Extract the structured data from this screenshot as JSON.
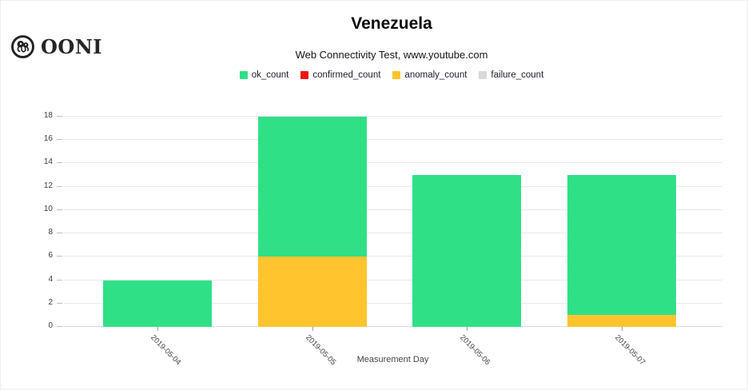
{
  "header": {
    "logo_text": "OONI",
    "title": "Venezuela",
    "subtitle": "Web Connectivity Test, www.youtube.com"
  },
  "chart_data": {
    "type": "bar",
    "stacked": true,
    "title": "Venezuela",
    "subtitle": "Web Connectivity Test, www.youtube.com",
    "categories": [
      "2019-05-04",
      "2019-05-05",
      "2019-05-06",
      "2019-05-07"
    ],
    "series": [
      {
        "name": "ok_count",
        "color": "#2fe087",
        "values": [
          4,
          12,
          13,
          12
        ]
      },
      {
        "name": "confirmed_count",
        "color": "#f21414",
        "values": [
          0,
          0,
          0,
          0
        ]
      },
      {
        "name": "anomaly_count",
        "color": "#ffc42e",
        "values": [
          0,
          6,
          0,
          1
        ]
      },
      {
        "name": "failure_count",
        "color": "#d8d8d8",
        "values": [
          0,
          0,
          0,
          0
        ]
      }
    ],
    "stack_order": [
      "confirmed_count",
      "anomaly_count",
      "failure_count",
      "ok_count"
    ],
    "totals": [
      4,
      18,
      13,
      13
    ],
    "xlabel": "Measurement Day",
    "ylabel": "",
    "ylim": [
      0,
      18
    ],
    "yticks": [
      0,
      2,
      4,
      6,
      8,
      10,
      12,
      14,
      16,
      18
    ],
    "grid": true,
    "legend_position": "top"
  }
}
